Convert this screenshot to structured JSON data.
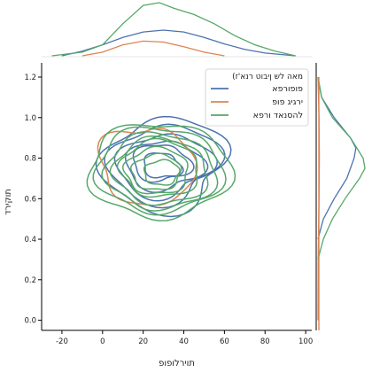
{
  "chart_data": {
    "type": "kde_joint",
    "xlabel": "תוירלופופ",
    "ylabel": "תוקירד",
    "xlim": [
      -30,
      103
    ],
    "ylim": [
      -0.05,
      1.27
    ],
    "xticks": [
      -20,
      0,
      20,
      40,
      60,
      80,
      100
    ],
    "yticks": [
      0.0,
      0.2,
      0.4,
      0.6,
      0.8,
      1.0,
      1.2
    ],
    "ytick_labels": [
      "0.0",
      "0.2",
      "0.4",
      "0.6",
      "0.8",
      "1.0",
      "1.2"
    ],
    "legend": {
      "title": "(מאה לש ןיבוט רנא'ז",
      "placement": "top-right"
    },
    "series": [
      {
        "name": "פופורפא",
        "color": "#4c72b0",
        "center": [
          30,
          0.77
        ],
        "spread": [
          18,
          0.13
        ],
        "levels": 6,
        "x_density": [
          [
            -20,
            0.0
          ],
          [
            -10,
            0.005
          ],
          [
            0,
            0.012
          ],
          [
            10,
            0.02
          ],
          [
            20,
            0.026
          ],
          [
            30,
            0.028
          ],
          [
            40,
            0.026
          ],
          [
            50,
            0.02
          ],
          [
            60,
            0.013
          ],
          [
            70,
            0.007
          ],
          [
            80,
            0.003
          ],
          [
            95,
            0.0
          ]
        ],
        "y_density": [
          [
            0.4,
            0.0
          ],
          [
            0.5,
            0.3
          ],
          [
            0.6,
            0.9
          ],
          [
            0.7,
            1.6
          ],
          [
            0.8,
            2.0
          ],
          [
            0.85,
            2.1
          ],
          [
            0.9,
            1.8
          ],
          [
            1.0,
            0.9
          ],
          [
            1.1,
            0.2
          ],
          [
            1.2,
            0.0
          ]
        ]
      },
      {
        "name": "ירגיג פופ",
        "color": "#dd8452",
        "center": [
          22,
          0.76
        ],
        "spread": [
          13,
          0.12
        ],
        "levels": 1,
        "x_density": [
          [
            -10,
            0.0
          ],
          [
            0,
            0.004
          ],
          [
            10,
            0.012
          ],
          [
            20,
            0.016
          ],
          [
            30,
            0.015
          ],
          [
            40,
            0.01
          ],
          [
            50,
            0.004
          ],
          [
            60,
            0.0
          ]
        ],
        "y_density": [
          [
            0.0,
            0.0
          ],
          [
            0.3,
            0.01
          ],
          [
            0.6,
            0.06
          ],
          [
            0.8,
            0.08
          ],
          [
            1.0,
            0.06
          ],
          [
            1.2,
            0.0
          ]
        ]
      },
      {
        "name": "להסנאד ורפא",
        "color": "#55a868",
        "center": [
          28,
          0.74
        ],
        "spread": [
          20,
          0.14
        ],
        "levels": 8,
        "x_density": [
          [
            -25,
            0.0
          ],
          [
            -10,
            0.004
          ],
          [
            0,
            0.012
          ],
          [
            10,
            0.035
          ],
          [
            20,
            0.055
          ],
          [
            28,
            0.058
          ],
          [
            35,
            0.052
          ],
          [
            45,
            0.045
          ],
          [
            55,
            0.035
          ],
          [
            65,
            0.022
          ],
          [
            75,
            0.012
          ],
          [
            85,
            0.005
          ],
          [
            95,
            0.0
          ]
        ],
        "y_density": [
          [
            0.3,
            0.0
          ],
          [
            0.4,
            0.3
          ],
          [
            0.5,
            0.8
          ],
          [
            0.6,
            1.5
          ],
          [
            0.7,
            2.3
          ],
          [
            0.75,
            2.6
          ],
          [
            0.8,
            2.5
          ],
          [
            0.9,
            1.8
          ],
          [
            1.0,
            0.8
          ],
          [
            1.1,
            0.2
          ],
          [
            1.2,
            0.0
          ]
        ]
      }
    ]
  }
}
